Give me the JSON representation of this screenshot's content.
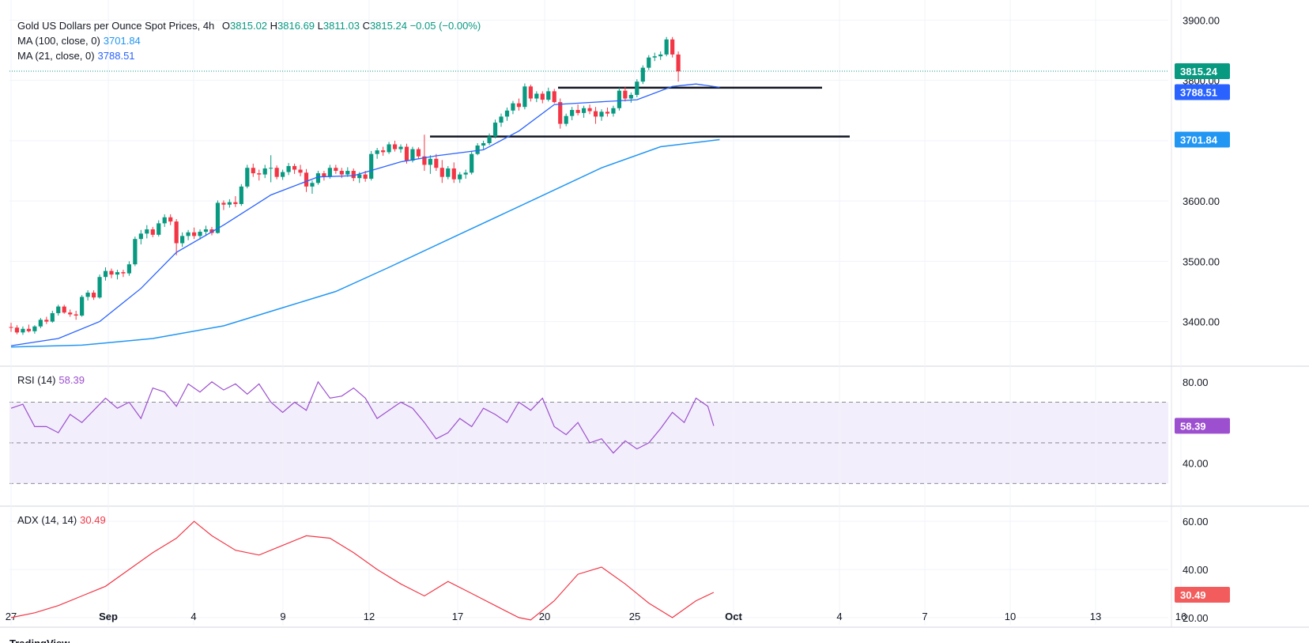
{
  "legend": {
    "title": "Gold US Dollars per Ounce Spot Prices, 4h",
    "o_label": "O",
    "o_val": "3815.02",
    "h_label": "H",
    "h_val": "3816.69",
    "l_label": "L",
    "l_val": "3811.03",
    "c_label": "C",
    "c_val": "3815.24",
    "change": "−0.05 (−0.00%)",
    "ma100_label": "MA (100, close, 0)",
    "ma100_val": "3701.84",
    "ma21_label": "MA (21, close, 0)",
    "ma21_val": "3788.51",
    "rsi_label": "RSI (14)",
    "rsi_val": "58.39",
    "adx_label": "ADX (14, 14)",
    "adx_val": "30.49"
  },
  "colors": {
    "up": "#089981",
    "down": "#f23645",
    "ma21": "#2962ff",
    "ma100": "#2196f3",
    "rsi": "#9c4fcf",
    "adx": "#f23645",
    "grid": "#f0f3fa",
    "text": "#131722",
    "price_tag": "#089981",
    "ma21_tag": "#2962ff",
    "ma100_tag": "#2196f3",
    "rsi_tag": "#9c4fcf",
    "adx_tag": "#f25c5c"
  },
  "tags": {
    "price": "3815.24",
    "ma21": "3788.51",
    "ma100": "3701.84",
    "rsi": "58.39",
    "adx": "30.49"
  },
  "branding": "TradingView",
  "chart_data": {
    "type": "candlestick",
    "title": "Gold US Dollars per Ounce Spot Prices, 4h",
    "x_ticks": [
      "27",
      "Sep",
      "4",
      "9",
      "12",
      "17",
      "20",
      "25",
      "Oct",
      "4",
      "7",
      "10",
      "13",
      "16"
    ],
    "price_axis": {
      "ticks": [
        "3400.00",
        "3500.00",
        "3600.00",
        "3700.00",
        "3800.00",
        "3900.00"
      ],
      "range": [
        3330,
        3915
      ]
    },
    "rsi_axis": {
      "ticks": [
        "40.00",
        "80.00"
      ],
      "bands": [
        30,
        50,
        70
      ],
      "range": [
        20,
        85
      ]
    },
    "adx_axis": {
      "ticks": [
        "20.00",
        "40.00",
        "60.00"
      ],
      "range": [
        17,
        64
      ]
    },
    "horizontal_levels": [
      3788,
      3707
    ],
    "candles": [
      [
        3391,
        3398,
        3383,
        3390
      ],
      [
        3390,
        3394,
        3379,
        3382
      ],
      [
        3382,
        3392,
        3378,
        3388
      ],
      [
        3388,
        3395,
        3382,
        3384
      ],
      [
        3384,
        3394,
        3380,
        3392
      ],
      [
        3392,
        3406,
        3389,
        3403
      ],
      [
        3403,
        3408,
        3396,
        3400
      ],
      [
        3400,
        3418,
        3398,
        3414
      ],
      [
        3414,
        3428,
        3410,
        3425
      ],
      [
        3425,
        3428,
        3413,
        3415
      ],
      [
        3415,
        3420,
        3408,
        3412
      ],
      [
        3412,
        3418,
        3403,
        3410
      ],
      [
        3410,
        3444,
        3408,
        3441
      ],
      [
        3441,
        3452,
        3435,
        3448
      ],
      [
        3448,
        3452,
        3436,
        3440
      ],
      [
        3440,
        3478,
        3438,
        3474
      ],
      [
        3474,
        3490,
        3468,
        3484
      ],
      [
        3484,
        3488,
        3472,
        3478
      ],
      [
        3478,
        3486,
        3470,
        3482
      ],
      [
        3482,
        3486,
        3474,
        3480
      ],
      [
        3480,
        3500,
        3476,
        3495
      ],
      [
        3495,
        3541,
        3492,
        3537
      ],
      [
        3537,
        3552,
        3528,
        3546
      ],
      [
        3546,
        3560,
        3538,
        3553
      ],
      [
        3553,
        3557,
        3540,
        3544
      ],
      [
        3544,
        3568,
        3541,
        3563
      ],
      [
        3563,
        3578,
        3557,
        3573
      ],
      [
        3573,
        3578,
        3560,
        3566
      ],
      [
        3566,
        3570,
        3510,
        3530
      ],
      [
        3530,
        3548,
        3524,
        3542
      ],
      [
        3542,
        3552,
        3535,
        3548
      ],
      [
        3548,
        3556,
        3537,
        3542
      ],
      [
        3542,
        3553,
        3536,
        3549
      ],
      [
        3549,
        3559,
        3542,
        3553
      ],
      [
        3553,
        3557,
        3543,
        3547
      ],
      [
        3547,
        3601,
        3546,
        3597
      ],
      [
        3597,
        3601,
        3585,
        3594
      ],
      [
        3594,
        3603,
        3589,
        3598
      ],
      [
        3598,
        3608,
        3590,
        3595
      ],
      [
        3595,
        3628,
        3592,
        3624
      ],
      [
        3624,
        3660,
        3621,
        3655
      ],
      [
        3655,
        3662,
        3640,
        3646
      ],
      [
        3646,
        3652,
        3634,
        3644
      ],
      [
        3644,
        3660,
        3638,
        3654
      ],
      [
        3654,
        3676,
        3631,
        3655
      ],
      [
        3655,
        3659,
        3636,
        3640
      ],
      [
        3640,
        3652,
        3635,
        3648
      ],
      [
        3648,
        3663,
        3643,
        3658
      ],
      [
        3658,
        3662,
        3645,
        3652
      ],
      [
        3652,
        3660,
        3641,
        3647
      ],
      [
        3647,
        3653,
        3615,
        3624
      ],
      [
        3624,
        3634,
        3612,
        3630
      ],
      [
        3630,
        3650,
        3627,
        3646
      ],
      [
        3646,
        3650,
        3634,
        3640
      ],
      [
        3640,
        3660,
        3637,
        3655
      ],
      [
        3655,
        3660,
        3645,
        3650
      ],
      [
        3650,
        3655,
        3638,
        3644
      ],
      [
        3644,
        3656,
        3640,
        3650
      ],
      [
        3650,
        3654,
        3633,
        3638
      ],
      [
        3638,
        3648,
        3630,
        3644
      ],
      [
        3644,
        3650,
        3632,
        3637
      ],
      [
        3637,
        3683,
        3634,
        3678
      ],
      [
        3678,
        3688,
        3670,
        3684
      ],
      [
        3684,
        3690,
        3675,
        3681
      ],
      [
        3681,
        3698,
        3678,
        3694
      ],
      [
        3694,
        3700,
        3682,
        3686
      ],
      [
        3686,
        3694,
        3680,
        3690
      ],
      [
        3690,
        3695,
        3662,
        3667
      ],
      [
        3667,
        3690,
        3664,
        3686
      ],
      [
        3686,
        3689,
        3670,
        3674
      ],
      [
        3674,
        3710,
        3650,
        3660
      ],
      [
        3660,
        3676,
        3645,
        3670
      ],
      [
        3670,
        3678,
        3650,
        3655
      ],
      [
        3655,
        3668,
        3630,
        3640
      ],
      [
        3640,
        3658,
        3636,
        3654
      ],
      [
        3654,
        3664,
        3630,
        3636
      ],
      [
        3636,
        3648,
        3630,
        3644
      ],
      [
        3644,
        3652,
        3637,
        3647
      ],
      [
        3647,
        3682,
        3644,
        3678
      ],
      [
        3678,
        3696,
        3676,
        3692
      ],
      [
        3692,
        3700,
        3686,
        3696
      ],
      [
        3696,
        3712,
        3693,
        3707
      ],
      [
        3707,
        3735,
        3704,
        3730
      ],
      [
        3730,
        3745,
        3723,
        3740
      ],
      [
        3740,
        3755,
        3733,
        3750
      ],
      [
        3750,
        3766,
        3744,
        3762
      ],
      [
        3762,
        3770,
        3750,
        3756
      ],
      [
        3756,
        3795,
        3752,
        3790
      ],
      [
        3790,
        3793,
        3765,
        3770
      ],
      [
        3770,
        3782,
        3764,
        3778
      ],
      [
        3778,
        3782,
        3762,
        3768
      ],
      [
        3768,
        3788,
        3765,
        3782
      ],
      [
        3782,
        3786,
        3762,
        3764
      ],
      [
        3764,
        3770,
        3720,
        3728
      ],
      [
        3728,
        3745,
        3724,
        3741
      ],
      [
        3741,
        3756,
        3734,
        3751
      ],
      [
        3751,
        3760,
        3742,
        3746
      ],
      [
        3746,
        3758,
        3738,
        3754
      ],
      [
        3754,
        3760,
        3744,
        3749
      ],
      [
        3749,
        3756,
        3728,
        3740
      ],
      [
        3740,
        3752,
        3733,
        3748
      ],
      [
        3748,
        3755,
        3740,
        3745
      ],
      [
        3745,
        3758,
        3740,
        3754
      ],
      [
        3754,
        3788,
        3750,
        3783
      ],
      [
        3783,
        3789,
        3765,
        3770
      ],
      [
        3770,
        3780,
        3763,
        3776
      ],
      [
        3776,
        3802,
        3772,
        3798
      ],
      [
        3798,
        3825,
        3794,
        3821
      ],
      [
        3821,
        3842,
        3817,
        3838
      ],
      [
        3838,
        3846,
        3832,
        3840
      ],
      [
        3840,
        3848,
        3834,
        3843
      ],
      [
        3843,
        3872,
        3840,
        3868
      ],
      [
        3868,
        3872,
        3838,
        3843
      ],
      [
        3843,
        3848,
        3798,
        3815
      ]
    ],
    "series": [
      {
        "name": "MA (100, close, 0)",
        "last": 3701.84,
        "values": [
          [
            0,
            3358
          ],
          [
            12,
            3361
          ],
          [
            24,
            3372
          ],
          [
            36,
            3393
          ],
          [
            45,
            3420
          ],
          [
            55,
            3450
          ],
          [
            64,
            3490
          ],
          [
            76,
            3545
          ],
          [
            88,
            3600
          ],
          [
            100,
            3655
          ],
          [
            110,
            3690
          ],
          [
            120,
            3701.84
          ]
        ]
      },
      {
        "name": "MA (21, close, 0)",
        "last": 3788.51,
        "values": [
          [
            0,
            3360
          ],
          [
            8,
            3372
          ],
          [
            15,
            3400
          ],
          [
            22,
            3455
          ],
          [
            28,
            3515
          ],
          [
            36,
            3560
          ],
          [
            44,
            3610
          ],
          [
            52,
            3640
          ],
          [
            58,
            3642
          ],
          [
            66,
            3665
          ],
          [
            72,
            3675
          ],
          [
            80,
            3685
          ],
          [
            86,
            3716
          ],
          [
            92,
            3760
          ],
          [
            99,
            3764
          ],
          [
            106,
            3768
          ],
          [
            112,
            3790
          ],
          [
            116,
            3794
          ],
          [
            120,
            3788.51
          ]
        ]
      },
      {
        "name": "RSI (14)",
        "last": 58.39,
        "values": [
          [
            0,
            67
          ],
          [
            2,
            69
          ],
          [
            4,
            58
          ],
          [
            6,
            58
          ],
          [
            8,
            55
          ],
          [
            10,
            64
          ],
          [
            12,
            60
          ],
          [
            14,
            66
          ],
          [
            16,
            72
          ],
          [
            18,
            67
          ],
          [
            20,
            70
          ],
          [
            22,
            62
          ],
          [
            24,
            77
          ],
          [
            26,
            75
          ],
          [
            28,
            68
          ],
          [
            30,
            79
          ],
          [
            32,
            75
          ],
          [
            34,
            80
          ],
          [
            36,
            76
          ],
          [
            38,
            79
          ],
          [
            40,
            74
          ],
          [
            42,
            79
          ],
          [
            44,
            70
          ],
          [
            46,
            65
          ],
          [
            48,
            70
          ],
          [
            50,
            66
          ],
          [
            52,
            80
          ],
          [
            54,
            72
          ],
          [
            56,
            73
          ],
          [
            58,
            77
          ],
          [
            60,
            72
          ],
          [
            62,
            62
          ],
          [
            64,
            66
          ],
          [
            66,
            70
          ],
          [
            68,
            67
          ],
          [
            70,
            60
          ],
          [
            72,
            52
          ],
          [
            74,
            55
          ],
          [
            76,
            62
          ],
          [
            78,
            58
          ],
          [
            80,
            67
          ],
          [
            82,
            64
          ],
          [
            84,
            60
          ],
          [
            86,
            70
          ],
          [
            88,
            66
          ],
          [
            90,
            72
          ],
          [
            92,
            58
          ],
          [
            94,
            54
          ],
          [
            96,
            60
          ],
          [
            98,
            50
          ],
          [
            100,
            52
          ],
          [
            102,
            45
          ],
          [
            104,
            51
          ],
          [
            106,
            47
          ],
          [
            108,
            50
          ],
          [
            110,
            57
          ],
          [
            112,
            65
          ],
          [
            114,
            60
          ],
          [
            116,
            72
          ],
          [
            118,
            68
          ],
          [
            119,
            58.39
          ]
        ]
      },
      {
        "name": "ADX (14, 14)",
        "last": 30.49,
        "values": [
          [
            0,
            20
          ],
          [
            4,
            22
          ],
          [
            8,
            25
          ],
          [
            12,
            29
          ],
          [
            16,
            33
          ],
          [
            20,
            40
          ],
          [
            24,
            47
          ],
          [
            28,
            53
          ],
          [
            31,
            60
          ],
          [
            34,
            54
          ],
          [
            38,
            48
          ],
          [
            42,
            46
          ],
          [
            46,
            50
          ],
          [
            50,
            54
          ],
          [
            54,
            53
          ],
          [
            58,
            47
          ],
          [
            62,
            40
          ],
          [
            66,
            34
          ],
          [
            70,
            29
          ],
          [
            74,
            35
          ],
          [
            78,
            30
          ],
          [
            82,
            25
          ],
          [
            86,
            20
          ],
          [
            88,
            19
          ],
          [
            92,
            27
          ],
          [
            96,
            38
          ],
          [
            100,
            41
          ],
          [
            104,
            34
          ],
          [
            108,
            26
          ],
          [
            112,
            20
          ],
          [
            116,
            27
          ],
          [
            119,
            30.49
          ]
        ]
      }
    ]
  }
}
